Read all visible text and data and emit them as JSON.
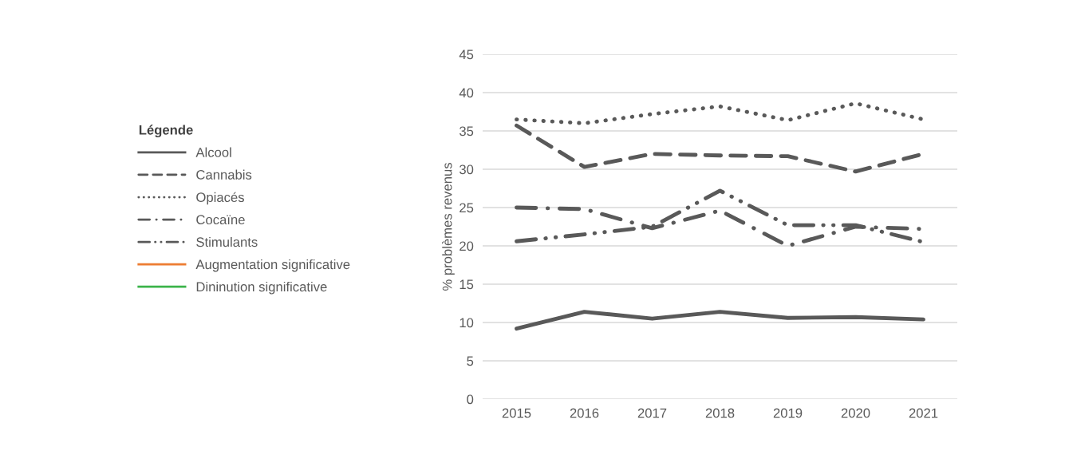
{
  "chart_data": {
    "type": "line",
    "ylabel": "% problèmes revenus",
    "legend_title": "Légende",
    "categories": [
      "2015",
      "2016",
      "2017",
      "2018",
      "2019",
      "2020",
      "2021"
    ],
    "series": [
      {
        "name": "Alcool",
        "color": "#595959",
        "line_style": "solid",
        "values": [
          9.2,
          11.4,
          10.5,
          11.4,
          10.6,
          10.7,
          10.4
        ]
      },
      {
        "name": "Cannabis",
        "color": "#595959",
        "line_style": "dashed",
        "values": [
          35.7,
          30.3,
          32.0,
          31.8,
          31.7,
          29.7,
          32.0
        ]
      },
      {
        "name": "Opiacés",
        "color": "#595959",
        "line_style": "dotted",
        "values": [
          36.5,
          36.0,
          37.2,
          38.2,
          36.4,
          38.6,
          36.5
        ]
      },
      {
        "name": "Cocaïne",
        "color": "#595959",
        "line_style": "dashdot",
        "values": [
          25.0,
          24.8,
          22.3,
          24.6,
          20.0,
          22.5,
          22.2
        ]
      },
      {
        "name": "Stimulants",
        "color": "#595959",
        "line_style": "dashdotdot",
        "values": [
          20.6,
          21.5,
          22.5,
          27.2,
          22.7,
          22.7,
          20.5
        ]
      },
      {
        "name": "Augmentation significative",
        "color": "#ed7d31",
        "line_style": "solid",
        "values": [
          null,
          null,
          null,
          null,
          null,
          null,
          null
        ]
      },
      {
        "name": "Dininution significative",
        "color": "#3cb44b",
        "line_style": "solid",
        "values": [
          null,
          null,
          null,
          null,
          null,
          null,
          null
        ]
      }
    ],
    "ylim": [
      0,
      45
    ],
    "yticks": [
      0,
      5,
      10,
      15,
      20,
      25,
      30,
      35,
      40,
      45
    ],
    "grid": "y",
    "legend": "left",
    "marker": "none"
  }
}
